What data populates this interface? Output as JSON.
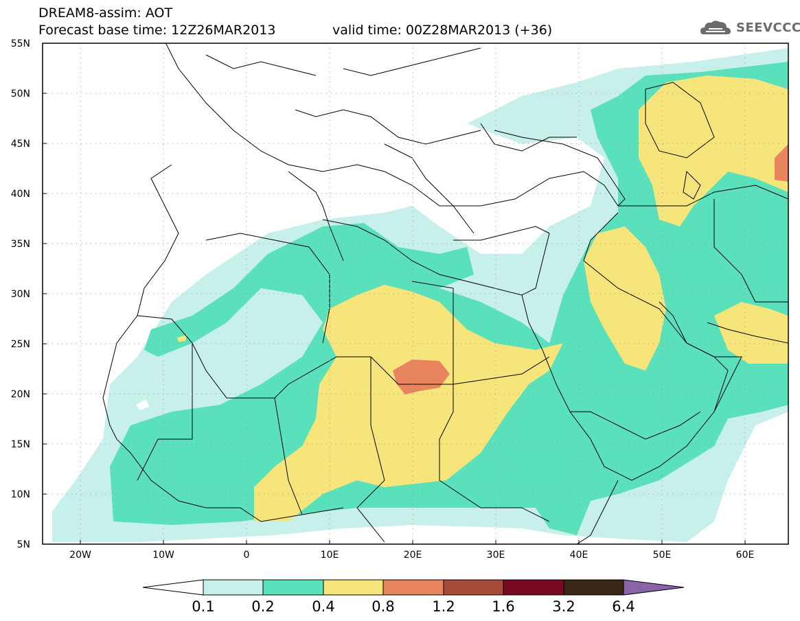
{
  "header": {
    "line1": "DREAM8-assim: AOT",
    "line2": "Forecast base time: 12Z26MAR2013",
    "line3": "valid time: 00Z28MAR2013 (+36)"
  },
  "logo": {
    "text": "SEEVCCC",
    "icon": "cloud-icon",
    "color": "#6b6b6b"
  },
  "map": {
    "lon_range": [
      -25,
      65
    ],
    "lat_range": [
      5,
      55
    ],
    "lat_labels": [
      "55N",
      "50N",
      "45N",
      "40N",
      "35N",
      "30N",
      "25N",
      "20N",
      "15N",
      "10N",
      "5N"
    ],
    "lon_labels": [
      "20W",
      "10W",
      "0",
      "10E",
      "20E",
      "30E",
      "40E",
      "50E",
      "60E"
    ],
    "grid": "dotted"
  },
  "colorbar": {
    "labels": [
      "0.1",
      "0.2",
      "0.4",
      "0.8",
      "1.2",
      "1.6",
      "3.2",
      "6.4"
    ],
    "colors": [
      "#ffffff",
      "#c8f0eb",
      "#5ae0bb",
      "#f5e57a",
      "#e8845e",
      "#a84a3a",
      "#7a0a24",
      "#3a2614",
      "#8a64a8"
    ]
  }
}
